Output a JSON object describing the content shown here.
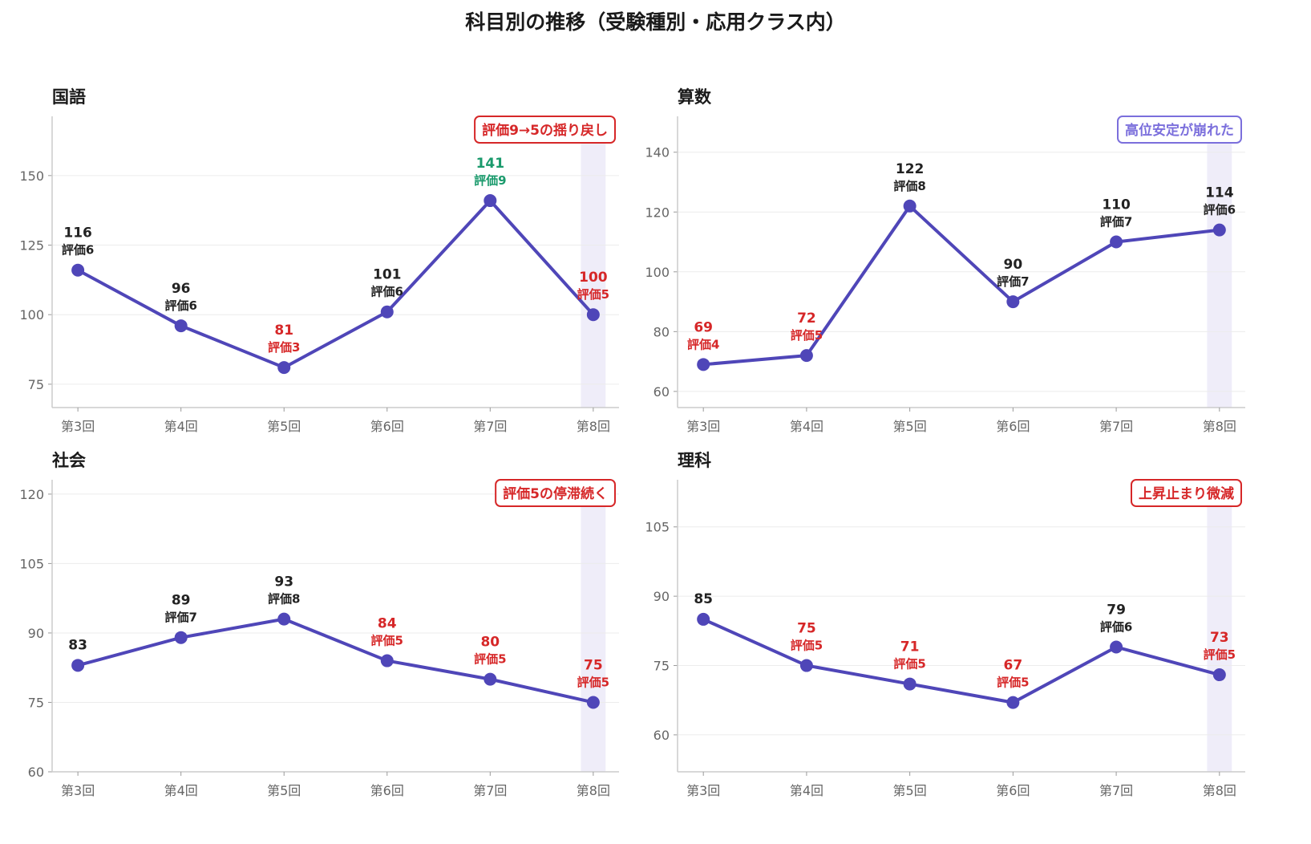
{
  "title": "科目別の推移（受験種別・応用クラス内）",
  "colors": {
    "line": "#4f46b8",
    "low": "#d62728",
    "high": "#1a9a6c",
    "normal": "#222222",
    "highlight": "#efedf9",
    "note_purple": "#7b6fdc"
  },
  "chart_data": [
    {
      "type": "line",
      "title": "国語",
      "categories": [
        "第3回",
        "第4回",
        "第5回",
        "第6回",
        "第7回",
        "第8回"
      ],
      "values": [
        116,
        96,
        81,
        101,
        141,
        100
      ],
      "ratings": [
        "評価6",
        "評価6",
        "評価3",
        "評価6",
        "評価9",
        "評価5"
      ],
      "label_colors": [
        "normal",
        "normal",
        "low",
        "normal",
        "high",
        "low"
      ],
      "yticks": [
        75,
        100,
        125,
        150
      ],
      "ylim": [
        66.6,
        171.3
      ],
      "highlight": "第8回",
      "annotation": "評価9→5の揺り戻し",
      "annotation_color": "low",
      "grid": true
    },
    {
      "type": "line",
      "title": "算数",
      "categories": [
        "第3回",
        "第4回",
        "第5回",
        "第6回",
        "第7回",
        "第8回"
      ],
      "values": [
        69,
        72,
        122,
        90,
        110,
        114
      ],
      "ratings": [
        "評価4",
        "評価5",
        "評価8",
        "評価7",
        "評価7",
        "評価6"
      ],
      "label_colors": [
        "low",
        "low",
        "normal",
        "normal",
        "normal",
        "normal"
      ],
      "yticks": [
        60,
        80,
        100,
        120,
        140
      ],
      "ylim": [
        54.6,
        152
      ],
      "highlight": "第8回",
      "annotation": "高位安定が崩れた",
      "annotation_color": "note_purple",
      "grid": true
    },
    {
      "type": "line",
      "title": "社会",
      "categories": [
        "第3回",
        "第4回",
        "第5回",
        "第6回",
        "第7回",
        "第8回"
      ],
      "values": [
        83,
        89,
        93,
        84,
        80,
        75
      ],
      "ratings": [
        null,
        "評価7",
        "評価8",
        "評価5",
        "評価5",
        "評価5"
      ],
      "label_colors": [
        "normal",
        "normal",
        "normal",
        "low",
        "low",
        "low"
      ],
      "yticks": [
        60,
        75,
        90,
        105,
        120
      ],
      "ylim": [
        60,
        123.1
      ],
      "highlight": "第8回",
      "annotation": "評価5の停滞続く",
      "annotation_color": "low",
      "grid": true
    },
    {
      "type": "line",
      "title": "理科",
      "categories": [
        "第3回",
        "第4回",
        "第5回",
        "第6回",
        "第7回",
        "第8回"
      ],
      "values": [
        85,
        75,
        71,
        67,
        79,
        73
      ],
      "ratings": [
        null,
        "評価5",
        "評価5",
        "評価5",
        "評価6",
        "評価5"
      ],
      "label_colors": [
        "normal",
        "low",
        "low",
        "low",
        "normal",
        "low"
      ],
      "yticks": [
        60,
        75,
        90,
        105
      ],
      "ylim": [
        52,
        115.2
      ],
      "highlight": "第8回",
      "annotation": "上昇止まり微減",
      "annotation_color": "low",
      "grid": true
    }
  ]
}
